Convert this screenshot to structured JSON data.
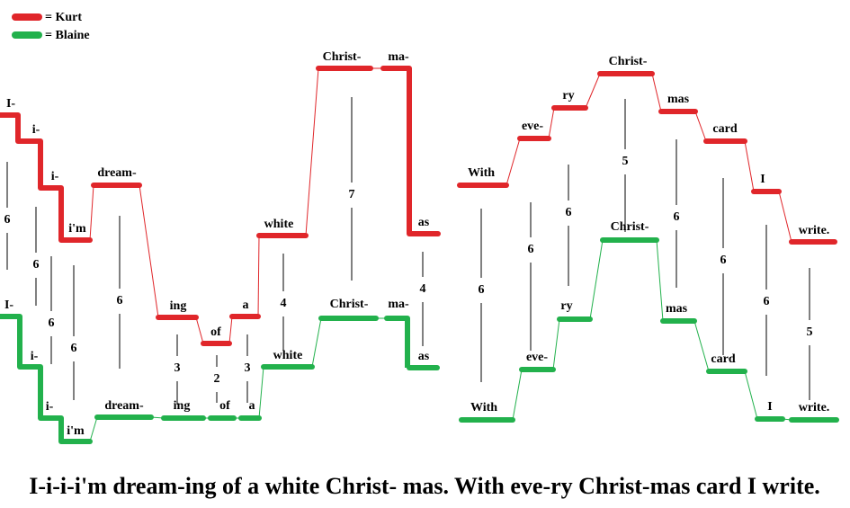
{
  "legend": [
    {
      "label": "= Kurt",
      "color": "#e0262a"
    },
    {
      "label": "= Blaine",
      "color": "#22b14c"
    }
  ],
  "kurt": {
    "syllables": [
      "I-",
      "i-",
      "i-",
      "i'm",
      "dream-",
      "ing",
      "of",
      "a",
      "white",
      "Christ-",
      "ma-",
      "as",
      "With",
      "eve-",
      "ry",
      "Christ-",
      "mas",
      "card",
      "I",
      "write."
    ]
  },
  "blaine": {
    "syllables": [
      "I-",
      "i-",
      "i-",
      "i'm",
      "dream-",
      "ing",
      "of",
      "a",
      "white",
      "Christ-",
      "ma-",
      "as",
      "With",
      "eve-",
      "ry",
      "Christ-",
      "mas",
      "card",
      "I",
      "write."
    ]
  },
  "intervals": [
    6,
    6,
    6,
    6,
    6,
    3,
    2,
    3,
    4,
    7,
    4,
    6,
    6,
    6,
    5,
    6,
    6,
    6,
    5
  ],
  "caption": "I-i-i-i'm dream-ing of a white Christ- mas. With eve-ry Christ-mas card I write."
}
